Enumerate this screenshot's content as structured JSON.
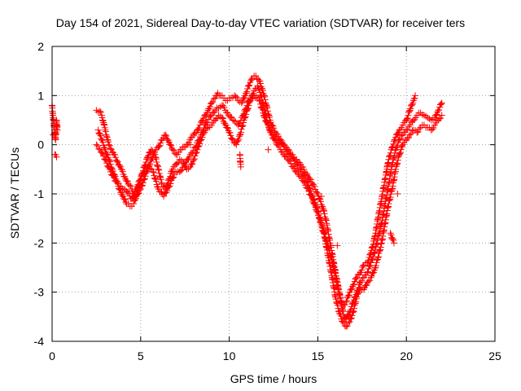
{
  "chart_data": {
    "type": "scatter",
    "title": "Day 154 of 2021, Sidereal Day-to-day VTEC variation (SDTVAR) for receiver ters",
    "xlabel": "GPS time / hours",
    "ylabel": "SDTVAR / TECUs",
    "xlim": [
      0,
      25
    ],
    "ylim": [
      -4,
      2
    ],
    "x_ticks": [
      "0",
      "5",
      "10",
      "15",
      "20",
      "25"
    ],
    "y_ticks": [
      "-4",
      "-3",
      "-2",
      "-1",
      "0",
      "1",
      "2"
    ],
    "grid": true,
    "marker": "+",
    "marker_color": "#ff0000",
    "series": [
      {
        "name": "",
        "color": "#ff0000",
        "points": [
          [
            0.0,
            0.8
          ],
          [
            0.05,
            0.6
          ],
          [
            0.1,
            0.4
          ],
          [
            0.15,
            0.2
          ],
          [
            0.2,
            0.1
          ],
          [
            0.25,
            0.5
          ],
          [
            0.3,
            0.3
          ],
          [
            0.15,
            -0.2
          ],
          [
            0.25,
            -0.25
          ],
          [
            0.05,
            0.2
          ],
          [
            2.5,
            0.7
          ],
          [
            2.7,
            0.68
          ],
          [
            2.8,
            0.6
          ],
          [
            2.9,
            0.45
          ],
          [
            3.0,
            0.3
          ],
          [
            3.1,
            0.15
          ],
          [
            3.2,
            0.0
          ],
          [
            3.35,
            -0.1
          ],
          [
            3.5,
            -0.2
          ],
          [
            3.7,
            -0.35
          ],
          [
            3.9,
            -0.5
          ],
          [
            4.1,
            -0.65
          ],
          [
            4.3,
            -0.8
          ],
          [
            4.5,
            -0.9
          ],
          [
            4.6,
            -1.0
          ],
          [
            4.75,
            -1.05
          ],
          [
            4.85,
            -1.0
          ],
          [
            5.0,
            -0.9
          ],
          [
            5.2,
            -0.7
          ],
          [
            5.4,
            -0.5
          ],
          [
            5.6,
            -0.3
          ],
          [
            5.8,
            -0.15
          ],
          [
            6.0,
            -0.05
          ],
          [
            6.2,
            0.1
          ],
          [
            6.4,
            0.2
          ],
          [
            6.6,
            0.05
          ],
          [
            6.8,
            -0.1
          ],
          [
            7.0,
            -0.2
          ],
          [
            7.3,
            -0.1
          ],
          [
            7.6,
            0.0
          ],
          [
            7.9,
            0.15
          ],
          [
            8.2,
            0.3
          ],
          [
            8.5,
            0.5
          ],
          [
            8.8,
            0.7
          ],
          [
            9.0,
            0.85
          ],
          [
            9.2,
            0.95
          ],
          [
            9.35,
            1.05
          ],
          [
            9.5,
            1.0
          ],
          [
            9.7,
            0.95
          ],
          [
            9.9,
            0.9
          ],
          [
            10.1,
            0.95
          ],
          [
            10.3,
            1.0
          ],
          [
            10.5,
            0.9
          ],
          [
            10.7,
            0.85
          ],
          [
            10.9,
            1.0
          ],
          [
            11.1,
            1.2
          ],
          [
            11.3,
            1.35
          ],
          [
            11.5,
            1.4
          ],
          [
            11.7,
            1.3
          ],
          [
            11.9,
            1.1
          ],
          [
            12.1,
            0.8
          ],
          [
            12.3,
            0.5
          ],
          [
            12.6,
            0.25
          ],
          [
            12.9,
            0.1
          ],
          [
            13.2,
            -0.05
          ],
          [
            13.5,
            -0.2
          ],
          [
            13.8,
            -0.3
          ],
          [
            14.1,
            -0.45
          ],
          [
            14.4,
            -0.6
          ],
          [
            14.7,
            -0.8
          ],
          [
            15.0,
            -1.0
          ],
          [
            15.3,
            -1.3
          ],
          [
            15.5,
            -1.6
          ],
          [
            15.7,
            -2.0
          ],
          [
            15.9,
            -2.4
          ],
          [
            16.1,
            -2.8
          ],
          [
            16.3,
            -3.2
          ],
          [
            16.45,
            -3.45
          ],
          [
            16.6,
            -3.55
          ],
          [
            16.8,
            -3.4
          ],
          [
            17.0,
            -3.2
          ],
          [
            17.2,
            -3.0
          ],
          [
            17.4,
            -2.8
          ],
          [
            17.6,
            -2.7
          ],
          [
            17.8,
            -2.6
          ],
          [
            18.0,
            -2.4
          ],
          [
            18.2,
            -2.2
          ],
          [
            18.4,
            -1.9
          ],
          [
            18.6,
            -1.6
          ],
          [
            18.8,
            -1.2
          ],
          [
            19.0,
            -0.8
          ],
          [
            19.2,
            -0.4
          ],
          [
            19.4,
            -0.1
          ],
          [
            19.6,
            0.1
          ],
          [
            19.8,
            0.2
          ],
          [
            20.0,
            0.3
          ],
          [
            20.2,
            0.4
          ],
          [
            20.4,
            0.5
          ],
          [
            20.6,
            0.6
          ],
          [
            20.8,
            0.65
          ],
          [
            21.0,
            0.6
          ],
          [
            21.2,
            0.55
          ],
          [
            21.4,
            0.5
          ],
          [
            21.6,
            0.55
          ],
          [
            21.8,
            0.7
          ],
          [
            22.0,
            0.85
          ],
          [
            2.6,
            0.3
          ],
          [
            2.8,
            0.1
          ],
          [
            3.0,
            -0.1
          ],
          [
            3.2,
            -0.3
          ],
          [
            3.4,
            -0.5
          ],
          [
            3.6,
            -0.7
          ],
          [
            3.8,
            -0.9
          ],
          [
            4.0,
            -1.05
          ],
          [
            4.2,
            -1.2
          ],
          [
            4.4,
            -1.25
          ],
          [
            4.6,
            -1.2
          ],
          [
            4.8,
            -1.0
          ],
          [
            5.0,
            -0.7
          ],
          [
            5.2,
            -0.45
          ],
          [
            5.4,
            -0.25
          ],
          [
            5.6,
            -0.1
          ],
          [
            5.8,
            -0.2
          ],
          [
            6.0,
            -0.5
          ],
          [
            6.2,
            -0.8
          ],
          [
            6.4,
            -0.9
          ],
          [
            6.6,
            -0.7
          ],
          [
            6.8,
            -0.5
          ],
          [
            7.0,
            -0.4
          ],
          [
            7.2,
            -0.3
          ],
          [
            7.4,
            -0.35
          ],
          [
            7.6,
            -0.5
          ],
          [
            7.8,
            -0.45
          ],
          [
            8.0,
            -0.3
          ],
          [
            8.2,
            -0.1
          ],
          [
            8.4,
            0.1
          ],
          [
            8.6,
            0.25
          ],
          [
            8.8,
            0.35
          ],
          [
            9.0,
            0.4
          ],
          [
            9.2,
            0.5
          ],
          [
            9.4,
            0.6
          ],
          [
            9.6,
            0.55
          ],
          [
            9.8,
            0.4
          ],
          [
            10.0,
            0.25
          ],
          [
            10.2,
            0.1
          ],
          [
            10.4,
            0.0
          ],
          [
            10.6,
            0.2
          ],
          [
            10.8,
            0.45
          ],
          [
            11.0,
            0.7
          ],
          [
            11.2,
            0.9
          ],
          [
            11.4,
            1.1
          ],
          [
            11.6,
            1.2
          ],
          [
            11.8,
            1.0
          ],
          [
            12.0,
            0.7
          ],
          [
            12.2,
            0.4
          ],
          [
            12.4,
            0.2
          ],
          [
            12.7,
            0.0
          ],
          [
            13.0,
            -0.15
          ],
          [
            13.3,
            -0.3
          ],
          [
            13.6,
            -0.45
          ],
          [
            13.9,
            -0.6
          ],
          [
            14.2,
            -0.75
          ],
          [
            14.5,
            -0.95
          ],
          [
            14.8,
            -1.2
          ],
          [
            15.1,
            -1.5
          ],
          [
            15.4,
            -1.9
          ],
          [
            15.6,
            -2.3
          ],
          [
            15.8,
            -2.7
          ],
          [
            16.0,
            -3.1
          ],
          [
            16.2,
            -3.4
          ],
          [
            16.4,
            -3.6
          ],
          [
            16.6,
            -3.7
          ],
          [
            16.8,
            -3.6
          ],
          [
            17.0,
            -3.4
          ],
          [
            17.2,
            -3.1
          ],
          [
            17.4,
            -2.9
          ],
          [
            17.6,
            -2.95
          ],
          [
            17.8,
            -2.8
          ],
          [
            18.0,
            -2.7
          ],
          [
            18.2,
            -2.55
          ],
          [
            18.4,
            -2.3
          ],
          [
            18.6,
            -2.0
          ],
          [
            18.8,
            -1.6
          ],
          [
            19.0,
            -1.2
          ],
          [
            19.2,
            -0.9
          ],
          [
            19.4,
            -0.5
          ],
          [
            19.6,
            -0.2
          ],
          [
            19.8,
            0.0
          ],
          [
            20.0,
            0.1
          ],
          [
            20.2,
            0.2
          ],
          [
            20.4,
            0.3
          ],
          [
            20.6,
            0.25
          ],
          [
            20.8,
            0.35
          ],
          [
            21.0,
            0.4
          ],
          [
            21.2,
            0.35
          ],
          [
            21.4,
            0.3
          ],
          [
            21.6,
            0.4
          ],
          [
            21.8,
            0.5
          ],
          [
            22.0,
            0.6
          ],
          [
            2.5,
            0.0
          ],
          [
            2.7,
            -0.1
          ],
          [
            3.0,
            -0.3
          ],
          [
            3.3,
            -0.55
          ],
          [
            3.6,
            -0.75
          ],
          [
            3.9,
            -0.85
          ],
          [
            4.2,
            -0.95
          ],
          [
            4.5,
            -1.1
          ],
          [
            4.8,
            -0.85
          ],
          [
            5.1,
            -0.6
          ],
          [
            5.4,
            -0.45
          ],
          [
            5.7,
            -0.55
          ],
          [
            6.0,
            -0.9
          ],
          [
            6.3,
            -1.05
          ],
          [
            6.6,
            -0.85
          ],
          [
            6.9,
            -0.6
          ],
          [
            7.2,
            -0.55
          ],
          [
            7.5,
            -0.4
          ],
          [
            7.8,
            -0.2
          ],
          [
            8.1,
            -0.05
          ],
          [
            8.4,
            0.2
          ],
          [
            8.7,
            0.45
          ],
          [
            9.0,
            0.6
          ],
          [
            9.3,
            0.75
          ],
          [
            9.6,
            0.8
          ],
          [
            9.9,
            0.65
          ],
          [
            10.2,
            0.5
          ],
          [
            10.5,
            0.4
          ],
          [
            10.8,
            0.6
          ],
          [
            11.1,
            0.9
          ],
          [
            11.4,
            1.0
          ],
          [
            11.7,
            0.9
          ],
          [
            12.0,
            0.55
          ],
          [
            12.3,
            0.3
          ],
          [
            12.6,
            0.15
          ],
          [
            12.9,
            0.05
          ],
          [
            13.2,
            -0.1
          ],
          [
            13.5,
            -0.25
          ],
          [
            13.8,
            -0.4
          ],
          [
            14.1,
            -0.55
          ],
          [
            14.4,
            -0.75
          ],
          [
            14.7,
            -1.05
          ],
          [
            15.0,
            -1.35
          ],
          [
            15.3,
            -1.7
          ],
          [
            15.6,
            -2.1
          ],
          [
            15.9,
            -2.5
          ],
          [
            16.2,
            -3.0
          ],
          [
            16.4,
            -3.3
          ],
          [
            16.6,
            -3.2
          ],
          [
            16.8,
            -3.0
          ],
          [
            17.0,
            -2.85
          ],
          [
            17.2,
            -2.7
          ],
          [
            17.4,
            -2.6
          ],
          [
            17.6,
            -2.45
          ],
          [
            17.8,
            -2.4
          ],
          [
            18.0,
            -2.2
          ],
          [
            18.2,
            -1.9
          ],
          [
            18.4,
            -1.5
          ],
          [
            18.6,
            -1.1
          ],
          [
            18.8,
            -0.7
          ],
          [
            19.0,
            -0.3
          ],
          [
            19.2,
            -0.05
          ],
          [
            19.4,
            0.15
          ],
          [
            19.6,
            0.3
          ],
          [
            19.8,
            0.4
          ],
          [
            20.0,
            0.5
          ],
          [
            20.2,
            0.7
          ],
          [
            20.4,
            0.9
          ],
          [
            20.5,
            1.0
          ],
          [
            10.6,
            -0.2
          ],
          [
            10.65,
            -0.45
          ],
          [
            7.8,
            0.0
          ],
          [
            12.2,
            -0.1
          ],
          [
            15.2,
            -1.05
          ],
          [
            16.1,
            -2.05
          ],
          [
            18.9,
            -0.45
          ],
          [
            19.1,
            -1.8
          ],
          [
            19.3,
            -2.0
          ],
          [
            19.5,
            -1.0
          ]
        ]
      }
    ]
  }
}
